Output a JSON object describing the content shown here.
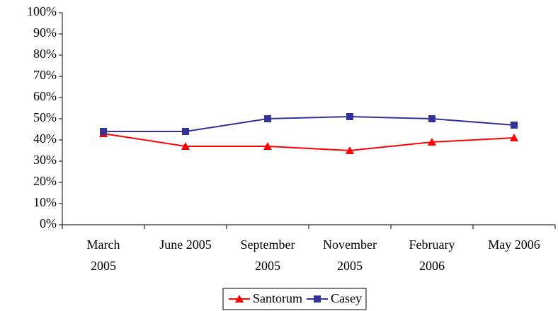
{
  "chart_data": {
    "type": "line",
    "categories": [
      "March 2005",
      "June 2005",
      "September 2005",
      "November 2005",
      "February 2006",
      "May 2006"
    ],
    "series": [
      {
        "name": "Santorum",
        "color": "#ff0000",
        "marker": "triangle",
        "values": [
          43,
          37,
          37,
          35,
          39,
          41
        ]
      },
      {
        "name": "Casey",
        "color": "#333399",
        "marker": "square",
        "values": [
          44,
          44,
          50,
          51,
          50,
          47
        ]
      }
    ],
    "ylim": [
      0,
      100
    ],
    "yticks": [
      {
        "value": 0,
        "label": "0%"
      },
      {
        "value": 10,
        "label": "10%"
      },
      {
        "value": 20,
        "label": "20%"
      },
      {
        "value": 30,
        "label": "30%"
      },
      {
        "value": 40,
        "label": "40%"
      },
      {
        "value": 50,
        "label": "50%"
      },
      {
        "value": 60,
        "label": "60%"
      },
      {
        "value": 70,
        "label": "70%"
      },
      {
        "value": 80,
        "label": "80%"
      },
      {
        "value": 90,
        "label": "90%"
      },
      {
        "value": 100,
        "label": "100%"
      }
    ],
    "legend": "bottom"
  }
}
